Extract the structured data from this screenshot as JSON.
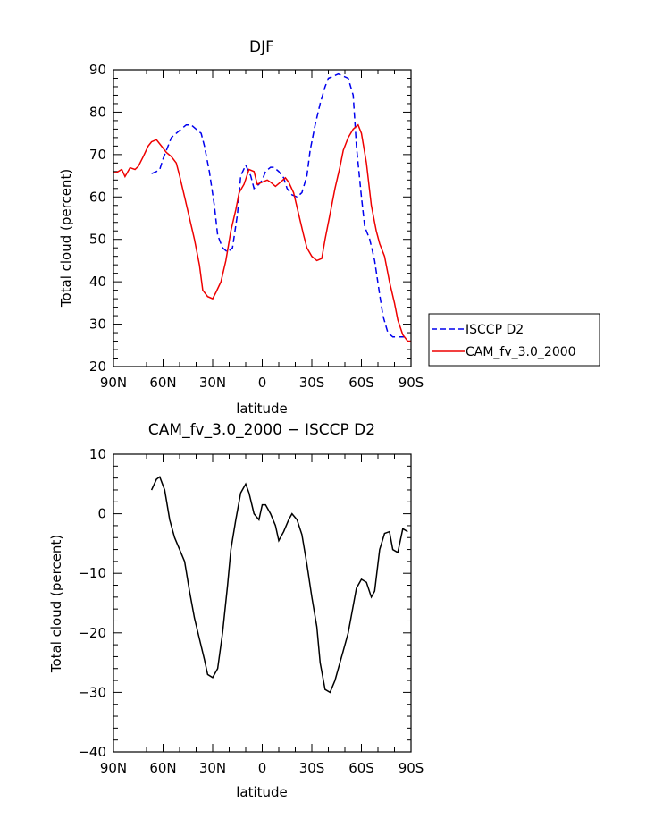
{
  "chart_data": [
    {
      "type": "line",
      "title": "DJF",
      "xlabel": "latitude",
      "ylabel": "Total cloud (percent)",
      "xlim": [
        -90,
        90
      ],
      "ylim": [
        20,
        90
      ],
      "x_ticks": [
        -90,
        -60,
        -30,
        0,
        30,
        60,
        90
      ],
      "x_tick_labels": [
        "90N",
        "60N",
        "30N",
        "0",
        "30S",
        "60S",
        "90S"
      ],
      "y_ticks": [
        20,
        30,
        40,
        50,
        60,
        70,
        80,
        90
      ],
      "y_tick_labels": [
        "20",
        "30",
        "40",
        "50",
        "60",
        "70",
        "80",
        "90"
      ],
      "legend_position": "right",
      "series": [
        {
          "name": "ISCCP D2",
          "color": "#0000ee",
          "dash": "dashed",
          "x": [
            -67,
            -64,
            -62,
            -60,
            -57,
            -55,
            -52,
            -49,
            -46,
            -43,
            -40,
            -37,
            -35,
            -32,
            -29,
            -27,
            -24,
            -21,
            -18,
            -15,
            -13,
            -10,
            -7,
            -5,
            -2,
            0,
            2,
            5,
            7,
            10,
            13,
            15,
            18,
            21,
            24,
            27,
            29,
            32,
            35,
            38,
            40,
            43,
            46,
            49,
            52,
            55,
            57,
            60,
            62,
            65,
            68,
            71,
            73,
            76,
            79,
            82,
            85,
            88
          ],
          "y": [
            65.5,
            66,
            66.5,
            69,
            72,
            74,
            75,
            76,
            77,
            77,
            76,
            75,
            72,
            66,
            58,
            51,
            48,
            47,
            48,
            56,
            65,
            67.5,
            65,
            62,
            63,
            64,
            66,
            67,
            67,
            66,
            64.5,
            62,
            60.5,
            60,
            61,
            65,
            71,
            77,
            82,
            86,
            88,
            88.5,
            89,
            88.5,
            88,
            84,
            72,
            60,
            53,
            50,
            45,
            37,
            32,
            28,
            27,
            27,
            27,
            27
          ]
        },
        {
          "name": "CAM_fv_3.0_2000",
          "color": "#ee0000",
          "dash": "solid",
          "x": [
            -90,
            -88,
            -85,
            -83,
            -80,
            -77,
            -75,
            -72,
            -69,
            -67,
            -64,
            -61,
            -58,
            -55,
            -52,
            -50,
            -47,
            -44,
            -41,
            -38,
            -36,
            -33,
            -30,
            -28,
            -25,
            -22,
            -19,
            -16,
            -14,
            -11,
            -8,
            -5,
            -3,
            0,
            3,
            5,
            8,
            11,
            14,
            16,
            19,
            22,
            25,
            27,
            30,
            33,
            36,
            38,
            41,
            44,
            47,
            49,
            52,
            55,
            58,
            60,
            63,
            66,
            69,
            71,
            74,
            77,
            80,
            82,
            85,
            88,
            90
          ],
          "y": [
            65.7,
            65.8,
            66.5,
            64.8,
            66.9,
            66.5,
            67.2,
            69.5,
            72,
            73,
            73.5,
            72,
            70.5,
            69.5,
            68,
            65,
            60,
            55,
            50,
            44,
            38,
            36.5,
            36,
            37.5,
            40,
            45,
            52,
            57,
            61,
            63,
            66.5,
            66,
            63,
            63.5,
            64,
            63.5,
            62.5,
            63.5,
            64.5,
            63.5,
            61,
            56,
            51,
            48,
            46,
            45,
            45.5,
            50,
            56,
            62,
            67,
            71,
            74,
            76,
            77,
            75,
            68,
            58,
            52,
            49,
            46,
            40,
            35,
            31,
            27.5,
            26,
            26
          ]
        }
      ]
    },
    {
      "type": "line",
      "title": "CAM_fv_3.0_2000 − ISCCP D2",
      "xlabel": "latitude",
      "ylabel": "Total cloud (percent)",
      "xlim": [
        -90,
        90
      ],
      "ylim": [
        -40,
        10
      ],
      "x_ticks": [
        -90,
        -60,
        -30,
        0,
        30,
        60,
        90
      ],
      "x_tick_labels": [
        "90N",
        "60N",
        "30N",
        "0",
        "30S",
        "60S",
        "90S"
      ],
      "y_ticks": [
        -40,
        -30,
        -20,
        -10,
        0,
        10
      ],
      "y_tick_labels": [
        "−40",
        "−30",
        "−20",
        "−10",
        "0",
        "10"
      ],
      "series": [
        {
          "color": "#000000",
          "dash": "solid",
          "x": [
            -67,
            -64,
            -62,
            -59,
            -56,
            -53,
            -50,
            -47,
            -44,
            -41,
            -38,
            -35,
            -33,
            -30,
            -27,
            -24,
            -21,
            -19,
            -16,
            -13,
            -10,
            -8,
            -5,
            -2,
            0,
            2,
            5,
            8,
            10,
            13,
            16,
            18,
            21,
            24,
            27,
            30,
            33,
            35,
            38,
            41,
            44,
            46,
            49,
            52,
            54,
            57,
            60,
            63,
            66,
            68,
            71,
            74,
            77,
            79,
            82,
            85,
            88
          ],
          "y": [
            4,
            5.8,
            6.2,
            4,
            -1,
            -4,
            -6,
            -8,
            -13,
            -17.5,
            -21,
            -24.5,
            -27,
            -27.5,
            -26,
            -20,
            -12,
            -6,
            -1,
            3.5,
            5,
            3.5,
            0,
            -1,
            1.5,
            1.5,
            0,
            -2,
            -4.5,
            -3,
            -1,
            0,
            -1,
            -3.5,
            -8.5,
            -14,
            -19,
            -25,
            -29.5,
            -30,
            -28,
            -26,
            -23,
            -20,
            -17,
            -12.5,
            -11,
            -11.5,
            -14,
            -13,
            -6,
            -3.3,
            -3,
            -6,
            -6.5,
            -2.5,
            -3
          ]
        }
      ]
    }
  ]
}
